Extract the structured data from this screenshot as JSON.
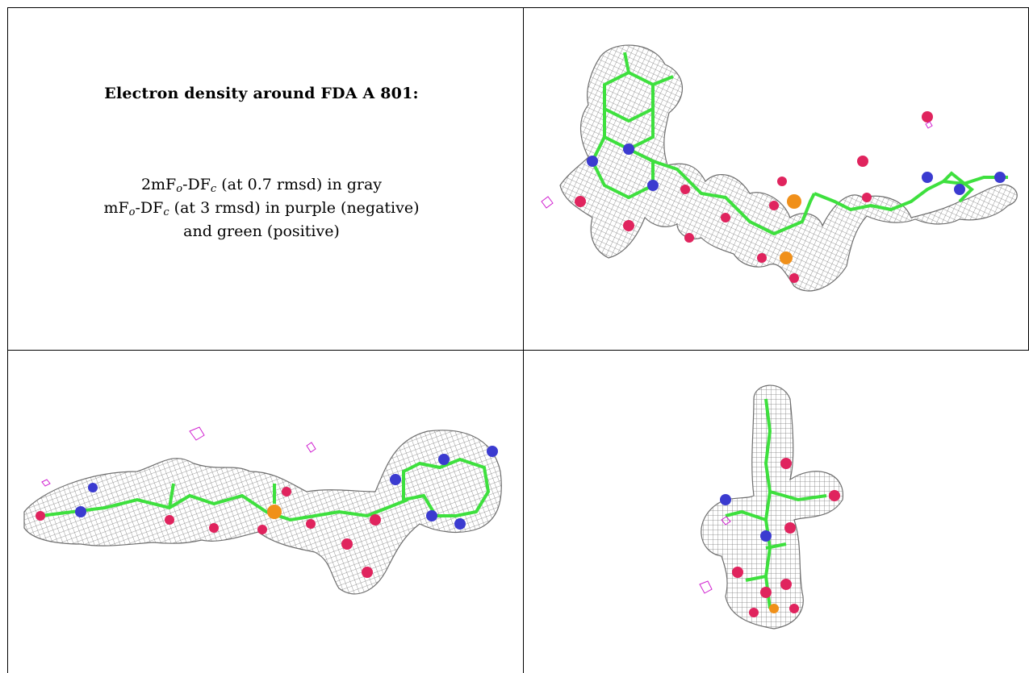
{
  "panel": {
    "title": "Electron density around FDA A 801:",
    "legend_line1_a": "2mF",
    "legend_line1_sub1": "o",
    "legend_line1_b": "-DF",
    "legend_line1_sub2": "c",
    "legend_line1_c": " (at 0.7 rmsd) in gray",
    "legend_line2_a": "mF",
    "legend_line2_sub1": "o",
    "legend_line2_b": "-DF",
    "legend_line2_sub2": "c",
    "legend_line2_c": " (at 3 rmsd) in purple (negative)",
    "legend_line3": "and green (positive)"
  },
  "colors": {
    "mesh": "#8c8c8c",
    "carbon": "#3ee03e",
    "nitrogen": "#3b3bd0",
    "oxygen": "#e0245e",
    "phosphorus": "#f0901a",
    "negative": "#d020d0"
  }
}
